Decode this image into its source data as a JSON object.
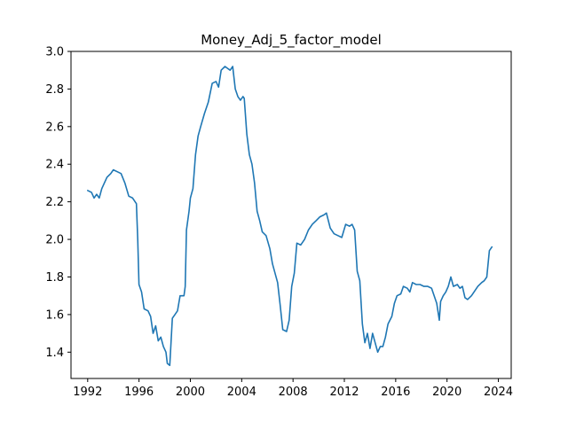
{
  "chart_data": {
    "type": "line",
    "title": "Money_Adj_5_factor_model",
    "xlabel": "",
    "ylabel": "",
    "xlim": [
      1990.7,
      2025.0
    ],
    "ylim": [
      1.26,
      3.0
    ],
    "xticks": [
      1992,
      1996,
      2000,
      2004,
      2008,
      2012,
      2016,
      2020,
      2024
    ],
    "yticks": [
      1.4,
      1.6,
      1.8,
      2.0,
      2.2,
      2.4,
      2.6,
      2.8,
      3.0
    ],
    "ytick_labels": [
      "1.4",
      "1.6",
      "1.8",
      "2.0",
      "2.2",
      "2.4",
      "2.6",
      "2.8",
      "3.0"
    ],
    "grid": false,
    "series": [
      {
        "color": "#1f77b4",
        "points": [
          [
            1992.0,
            2.26
          ],
          [
            1992.3,
            2.25
          ],
          [
            1992.5,
            2.22
          ],
          [
            1992.7,
            2.24
          ],
          [
            1992.9,
            2.22
          ],
          [
            1993.1,
            2.27
          ],
          [
            1993.3,
            2.3
          ],
          [
            1993.5,
            2.33
          ],
          [
            1993.8,
            2.35
          ],
          [
            1994.0,
            2.37
          ],
          [
            1994.3,
            2.36
          ],
          [
            1994.6,
            2.35
          ],
          [
            1994.9,
            2.3
          ],
          [
            1995.2,
            2.23
          ],
          [
            1995.5,
            2.22
          ],
          [
            1995.8,
            2.19
          ],
          [
            1995.9,
            2.0
          ],
          [
            1996.0,
            1.76
          ],
          [
            1996.2,
            1.72
          ],
          [
            1996.4,
            1.63
          ],
          [
            1996.7,
            1.62
          ],
          [
            1996.9,
            1.59
          ],
          [
            1997.1,
            1.5
          ],
          [
            1997.3,
            1.54
          ],
          [
            1997.5,
            1.46
          ],
          [
            1997.7,
            1.48
          ],
          [
            1997.9,
            1.43
          ],
          [
            1998.1,
            1.4
          ],
          [
            1998.2,
            1.34
          ],
          [
            1998.4,
            1.33
          ],
          [
            1998.6,
            1.58
          ],
          [
            1998.8,
            1.6
          ],
          [
            1999.0,
            1.62
          ],
          [
            1999.2,
            1.7
          ],
          [
            1999.5,
            1.7
          ],
          [
            1999.6,
            1.75
          ],
          [
            1999.7,
            2.05
          ],
          [
            1999.9,
            2.15
          ],
          [
            2000.0,
            2.22
          ],
          [
            2000.2,
            2.27
          ],
          [
            2000.4,
            2.45
          ],
          [
            2000.6,
            2.55
          ],
          [
            2000.8,
            2.6
          ],
          [
            2001.1,
            2.67
          ],
          [
            2001.4,
            2.73
          ],
          [
            2001.7,
            2.83
          ],
          [
            2002.0,
            2.84
          ],
          [
            2002.2,
            2.81
          ],
          [
            2002.4,
            2.9
          ],
          [
            2002.7,
            2.92
          ],
          [
            2002.9,
            2.91
          ],
          [
            2003.1,
            2.9
          ],
          [
            2003.3,
            2.92
          ],
          [
            2003.5,
            2.8
          ],
          [
            2003.7,
            2.76
          ],
          [
            2003.9,
            2.74
          ],
          [
            2004.1,
            2.76
          ],
          [
            2004.2,
            2.75
          ],
          [
            2004.4,
            2.56
          ],
          [
            2004.6,
            2.45
          ],
          [
            2004.8,
            2.4
          ],
          [
            2005.0,
            2.3
          ],
          [
            2005.2,
            2.15
          ],
          [
            2005.4,
            2.1
          ],
          [
            2005.6,
            2.04
          ],
          [
            2005.9,
            2.02
          ],
          [
            2006.2,
            1.95
          ],
          [
            2006.4,
            1.87
          ],
          [
            2006.6,
            1.82
          ],
          [
            2006.8,
            1.77
          ],
          [
            2007.0,
            1.65
          ],
          [
            2007.2,
            1.52
          ],
          [
            2007.5,
            1.51
          ],
          [
            2007.7,
            1.57
          ],
          [
            2007.9,
            1.75
          ],
          [
            2008.1,
            1.82
          ],
          [
            2008.3,
            1.98
          ],
          [
            2008.6,
            1.97
          ],
          [
            2008.9,
            2.0
          ],
          [
            2009.2,
            2.05
          ],
          [
            2009.5,
            2.08
          ],
          [
            2009.8,
            2.1
          ],
          [
            2010.1,
            2.12
          ],
          [
            2010.4,
            2.13
          ],
          [
            2010.6,
            2.14
          ],
          [
            2010.9,
            2.06
          ],
          [
            2011.2,
            2.03
          ],
          [
            2011.5,
            2.02
          ],
          [
            2011.8,
            2.01
          ],
          [
            2012.1,
            2.08
          ],
          [
            2012.4,
            2.07
          ],
          [
            2012.6,
            2.08
          ],
          [
            2012.8,
            2.05
          ],
          [
            2013.0,
            1.83
          ],
          [
            2013.2,
            1.78
          ],
          [
            2013.4,
            1.55
          ],
          [
            2013.6,
            1.45
          ],
          [
            2013.8,
            1.5
          ],
          [
            2014.0,
            1.42
          ],
          [
            2014.2,
            1.5
          ],
          [
            2014.4,
            1.45
          ],
          [
            2014.6,
            1.4
          ],
          [
            2014.8,
            1.43
          ],
          [
            2015.0,
            1.43
          ],
          [
            2015.2,
            1.48
          ],
          [
            2015.4,
            1.55
          ],
          [
            2015.7,
            1.59
          ],
          [
            2015.9,
            1.66
          ],
          [
            2016.1,
            1.7
          ],
          [
            2016.4,
            1.71
          ],
          [
            2016.6,
            1.75
          ],
          [
            2016.9,
            1.74
          ],
          [
            2017.1,
            1.72
          ],
          [
            2017.3,
            1.77
          ],
          [
            2017.6,
            1.76
          ],
          [
            2017.9,
            1.76
          ],
          [
            2018.2,
            1.75
          ],
          [
            2018.5,
            1.75
          ],
          [
            2018.8,
            1.74
          ],
          [
            2019.0,
            1.7
          ],
          [
            2019.2,
            1.66
          ],
          [
            2019.4,
            1.57
          ],
          [
            2019.5,
            1.67
          ],
          [
            2019.7,
            1.7
          ],
          [
            2019.9,
            1.72
          ],
          [
            2020.1,
            1.75
          ],
          [
            2020.3,
            1.8
          ],
          [
            2020.5,
            1.75
          ],
          [
            2020.8,
            1.76
          ],
          [
            2021.0,
            1.74
          ],
          [
            2021.2,
            1.75
          ],
          [
            2021.4,
            1.69
          ],
          [
            2021.6,
            1.68
          ],
          [
            2021.9,
            1.7
          ],
          [
            2022.1,
            1.72
          ],
          [
            2022.4,
            1.75
          ],
          [
            2022.7,
            1.77
          ],
          [
            2022.9,
            1.78
          ],
          [
            2023.1,
            1.8
          ],
          [
            2023.3,
            1.94
          ],
          [
            2023.5,
            1.96
          ]
        ]
      }
    ]
  }
}
